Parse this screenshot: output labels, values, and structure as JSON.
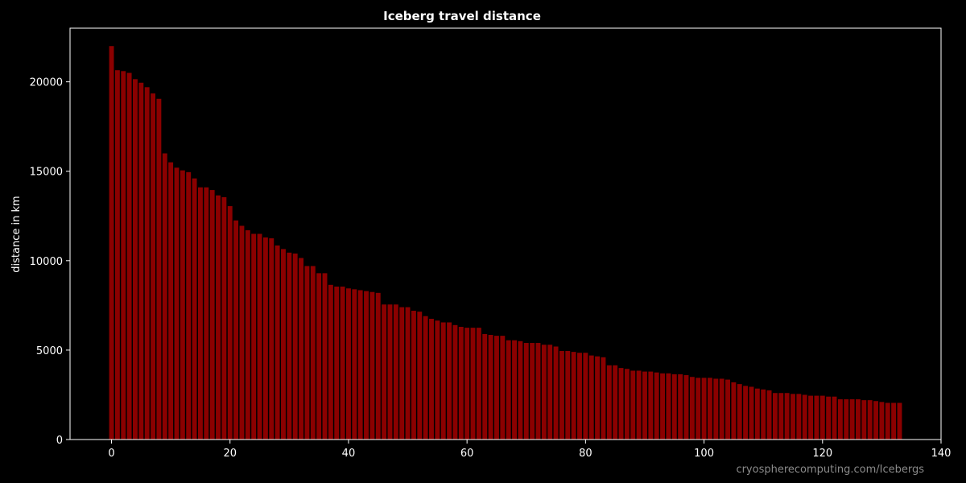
{
  "chart_data": {
    "type": "bar",
    "title": "Iceberg travel distance",
    "xlabel": "",
    "ylabel": "distance in km",
    "xlim": [
      -7,
      140
    ],
    "ylim": [
      0,
      23000
    ],
    "x_ticks": [
      0,
      20,
      40,
      60,
      80,
      100,
      120,
      140
    ],
    "y_ticks": [
      0,
      5000,
      10000,
      15000,
      20000
    ],
    "grid": false,
    "bar_color": "#8b0000",
    "background": "#000000",
    "foreground": "#ffffff",
    "x": [
      0,
      1,
      2,
      3,
      4,
      5,
      6,
      7,
      8,
      9,
      10,
      11,
      12,
      13,
      14,
      15,
      16,
      17,
      18,
      19,
      20,
      21,
      22,
      23,
      24,
      25,
      26,
      27,
      28,
      29,
      30,
      31,
      32,
      33,
      34,
      35,
      36,
      37,
      38,
      39,
      40,
      41,
      42,
      43,
      44,
      45,
      46,
      47,
      48,
      49,
      50,
      51,
      52,
      53,
      54,
      55,
      56,
      57,
      58,
      59,
      60,
      61,
      62,
      63,
      64,
      65,
      66,
      67,
      68,
      69,
      70,
      71,
      72,
      73,
      74,
      75,
      76,
      77,
      78,
      79,
      80,
      81,
      82,
      83,
      84,
      85,
      86,
      87,
      88,
      89,
      90,
      91,
      92,
      93,
      94,
      95,
      96,
      97,
      98,
      99,
      100,
      101,
      102,
      103,
      104,
      105,
      106,
      107,
      108,
      109,
      110,
      111,
      112,
      113,
      114,
      115,
      116,
      117,
      118,
      119,
      120,
      121,
      122,
      123,
      124,
      125,
      126,
      127,
      128,
      129,
      130,
      131,
      132,
      133
    ],
    "values": [
      22000,
      20650,
      20600,
      20500,
      20150,
      19950,
      19700,
      19350,
      19050,
      16000,
      15500,
      15200,
      15050,
      14950,
      14600,
      14100,
      14100,
      13950,
      13650,
      13550,
      13050,
      12250,
      11950,
      11700,
      11500,
      11500,
      11300,
      11250,
      10850,
      10650,
      10450,
      10400,
      10150,
      9700,
      9700,
      9300,
      9300,
      8650,
      8550,
      8550,
      8450,
      8400,
      8350,
      8300,
      8250,
      8200,
      7550,
      7550,
      7550,
      7400,
      7400,
      7200,
      7150,
      6900,
      6750,
      6650,
      6550,
      6550,
      6400,
      6300,
      6250,
      6250,
      6250,
      5900,
      5850,
      5800,
      5800,
      5550,
      5550,
      5500,
      5400,
      5400,
      5400,
      5300,
      5300,
      5200,
      4950,
      4950,
      4900,
      4850,
      4850,
      4700,
      4650,
      4600,
      4150,
      4150,
      4000,
      3950,
      3850,
      3850,
      3800,
      3800,
      3750,
      3700,
      3700,
      3650,
      3650,
      3600,
      3500,
      3450,
      3450,
      3450,
      3400,
      3400,
      3350,
      3200,
      3100,
      3000,
      2950,
      2850,
      2800,
      2750,
      2600,
      2600,
      2600,
      2550,
      2550,
      2500,
      2450,
      2450,
      2450,
      2400,
      2400,
      2250,
      2250,
      2250,
      2250,
      2200,
      2200,
      2150,
      2100,
      2050,
      2050,
      2050
    ]
  },
  "credit": "cryospherecomputing.com/Icebergs"
}
